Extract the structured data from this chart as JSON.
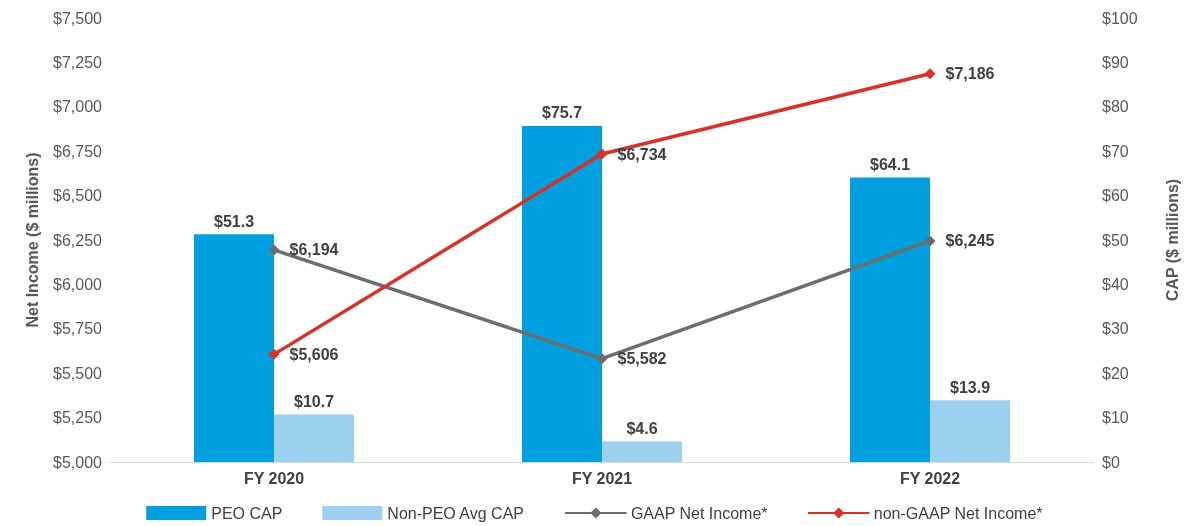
{
  "chart_data": {
    "type": "bar",
    "ylabel": "Net Income ($ millions)",
    "y2label": "CAP ($ millions)",
    "categories": [
      "FY 2020",
      "FY 2021",
      "FY 2022"
    ],
    "series": [
      {
        "name": "PEO CAP",
        "axis": "y2",
        "color": "#009fdf",
        "values": [
          51.3,
          75.7,
          64.1
        ],
        "value_labels": [
          "$51.3",
          "$75.7",
          "$64.1"
        ]
      },
      {
        "name": "Non-PEO Avg CAP",
        "axis": "y2",
        "color": "#9dcfee",
        "values": [
          10.7,
          4.6,
          13.9
        ],
        "value_labels": [
          "$10.7",
          "$4.6",
          "$13.9"
        ]
      },
      {
        "name": "GAAP Net Income*",
        "type": "line",
        "axis": "y",
        "color": "#6d6d6d",
        "values": [
          6194,
          5582,
          6245
        ],
        "value_labels": [
          "$6,194",
          "$5,582",
          "$6,245"
        ]
      },
      {
        "name": "non-GAAP Net Income*",
        "type": "line",
        "axis": "y",
        "color": "#d9302a",
        "values": [
          5606,
          6734,
          7186
        ],
        "value_labels": [
          "$5,606",
          "$6,734",
          "$7,186"
        ]
      }
    ],
    "ylim": [
      5000,
      7500
    ],
    "yticks": [
      {
        "value": 5000,
        "label": "$5,000"
      },
      {
        "value": 5250,
        "label": "$5,250"
      },
      {
        "value": 5500,
        "label": "$5,500"
      },
      {
        "value": 5750,
        "label": "$5,750"
      },
      {
        "value": 6000,
        "label": "$6,000"
      },
      {
        "value": 6250,
        "label": "$6,250"
      },
      {
        "value": 6500,
        "label": "$6,500"
      },
      {
        "value": 6750,
        "label": "$6,750"
      },
      {
        "value": 7000,
        "label": "$7,000"
      },
      {
        "value": 7250,
        "label": "$7,250"
      },
      {
        "value": 7500,
        "label": "$7,500"
      }
    ],
    "y2lim": [
      0,
      100
    ],
    "y2ticks": [
      {
        "value": 0,
        "label": "$0"
      },
      {
        "value": 10,
        "label": "$10"
      },
      {
        "value": 20,
        "label": "$20"
      },
      {
        "value": 30,
        "label": "$30"
      },
      {
        "value": 40,
        "label": "$40"
      },
      {
        "value": 50,
        "label": "$50"
      },
      {
        "value": 60,
        "label": "$60"
      },
      {
        "value": 70,
        "label": "$70"
      },
      {
        "value": 80,
        "label": "$80"
      },
      {
        "value": 90,
        "label": "$90"
      },
      {
        "value": 100,
        "label": "$100"
      }
    ],
    "grid": false,
    "legend": "bottom",
    "marker": "diamond",
    "line_style": "solid"
  }
}
